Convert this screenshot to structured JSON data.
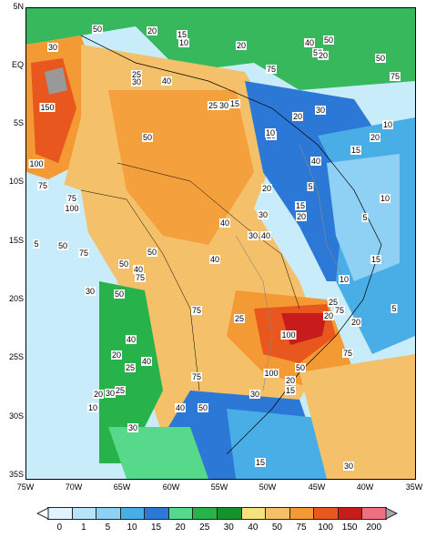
{
  "map": {
    "lat_labels": [
      "5N",
      "EQ",
      "5S",
      "10S",
      "15S",
      "20S",
      "25S",
      "30S",
      "35S"
    ],
    "lon_labels": [
      "75W",
      "70W",
      "65W",
      "60W",
      "55W",
      "50W",
      "45W",
      "40W",
      "35W"
    ],
    "contour_labels": [
      {
        "text": "50"
      },
      {
        "text": "30"
      },
      {
        "text": "20"
      },
      {
        "text": "15"
      },
      {
        "text": "10"
      },
      {
        "text": "20"
      },
      {
        "text": "40"
      },
      {
        "text": "50"
      },
      {
        "text": "50"
      },
      {
        "text": "20"
      },
      {
        "text": "25"
      },
      {
        "text": "30"
      },
      {
        "text": "40"
      },
      {
        "text": "75"
      },
      {
        "text": "50"
      },
      {
        "text": "75"
      },
      {
        "text": "150"
      },
      {
        "text": "25"
      },
      {
        "text": "30"
      },
      {
        "text": "15"
      },
      {
        "text": "20"
      },
      {
        "text": "10"
      },
      {
        "text": "30"
      },
      {
        "text": "20"
      },
      {
        "text": "50"
      },
      {
        "text": "20"
      },
      {
        "text": "15"
      },
      {
        "text": "100"
      },
      {
        "text": "40"
      },
      {
        "text": "10"
      },
      {
        "text": "75"
      },
      {
        "text": "5"
      },
      {
        "text": "75"
      },
      {
        "text": "100"
      },
      {
        "text": "20"
      },
      {
        "text": "30"
      },
      {
        "text": "15"
      },
      {
        "text": "5"
      },
      {
        "text": "20"
      },
      {
        "text": "40"
      },
      {
        "text": "30"
      },
      {
        "text": "40"
      },
      {
        "text": "10"
      },
      {
        "text": "50"
      },
      {
        "text": "5"
      },
      {
        "text": "50"
      },
      {
        "text": "40"
      },
      {
        "text": "15"
      },
      {
        "text": "75"
      },
      {
        "text": "50"
      },
      {
        "text": "30"
      },
      {
        "text": "50"
      },
      {
        "text": "40"
      },
      {
        "text": "75"
      },
      {
        "text": "10"
      },
      {
        "text": "25"
      },
      {
        "text": "75"
      },
      {
        "text": "20"
      },
      {
        "text": "5"
      },
      {
        "text": "20"
      },
      {
        "text": "75"
      },
      {
        "text": "25"
      },
      {
        "text": "100"
      },
      {
        "text": "40"
      },
      {
        "text": "20"
      },
      {
        "text": "75"
      },
      {
        "text": "25"
      },
      {
        "text": "40"
      },
      {
        "text": "75"
      },
      {
        "text": "100"
      },
      {
        "text": "50"
      },
      {
        "text": "20"
      },
      {
        "text": "15"
      },
      {
        "text": "40"
      },
      {
        "text": "50"
      },
      {
        "text": "30"
      },
      {
        "text": "10"
      },
      {
        "text": "20"
      },
      {
        "text": "30"
      },
      {
        "text": "25"
      },
      {
        "text": "15"
      },
      {
        "text": "30"
      },
      {
        "text": "30"
      }
    ]
  },
  "legend": {
    "values": [
      "0",
      "1",
      "5",
      "10",
      "15",
      "20",
      "25",
      "30",
      "40",
      "50",
      "75",
      "100",
      "150",
      "200"
    ],
    "colors": [
      "#e0f4ff",
      "#b8e4fb",
      "#8fd1f5",
      "#4aaee6",
      "#2c78d6",
      "#56d98a",
      "#27b34a",
      "#13922e",
      "#f6e27a",
      "#f5c06a",
      "#f39a34",
      "#e8571d",
      "#c81b1b",
      "#ef6f7e"
    ]
  }
}
